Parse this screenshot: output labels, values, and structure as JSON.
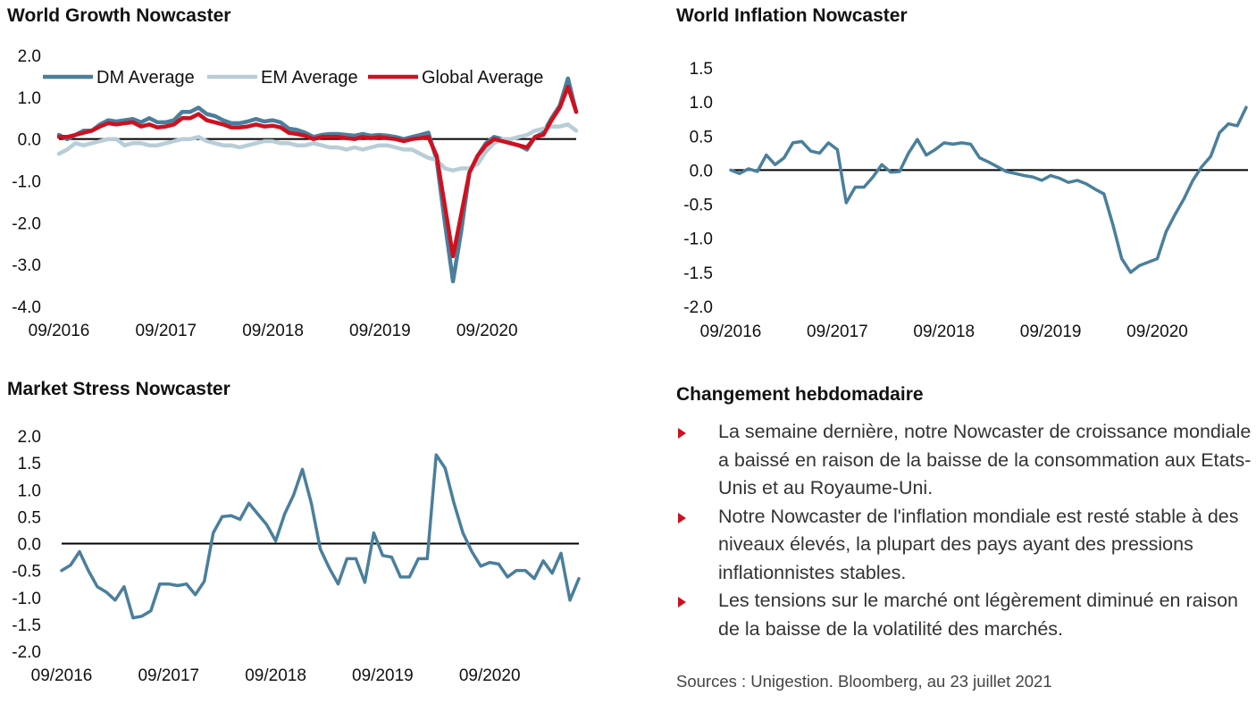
{
  "colors": {
    "dm": "#4a7f9c",
    "em": "#b8cdd7",
    "global": "#d0101f",
    "zero": "#000000",
    "bullet": "#d0101f"
  },
  "charts": {
    "growth": {
      "title": "World Growth Nowcaster"
    },
    "inflation": {
      "title": "World Inflation Nowcaster"
    },
    "stress": {
      "title": "Market Stress Nowcaster"
    }
  },
  "chart_data": [
    {
      "id": "growth",
      "type": "line",
      "title": "World Growth Nowcaster",
      "x_start": "2016-09",
      "x_end": "2021-07",
      "xticks": [
        "09/2016",
        "09/2017",
        "09/2018",
        "09/2019",
        "09/2020"
      ],
      "yticks": [
        2.0,
        1.0,
        0.0,
        -1.0,
        -2.0,
        -3.0,
        -4.0
      ],
      "ytick_labels": [
        "2.0",
        "1.0",
        "0.0",
        "-1.0",
        "-2.0",
        "-3.0",
        "-4.0"
      ],
      "ylim": [
        -4.0,
        2.0
      ],
      "legend": "top",
      "series": [
        {
          "name": "DM Average",
          "color": "#4a7f9c",
          "values": [
            0.1,
            0.0,
            0.1,
            0.2,
            0.2,
            0.35,
            0.45,
            0.42,
            0.45,
            0.48,
            0.4,
            0.5,
            0.4,
            0.4,
            0.45,
            0.65,
            0.65,
            0.75,
            0.6,
            0.55,
            0.45,
            0.38,
            0.38,
            0.42,
            0.48,
            0.42,
            0.45,
            0.4,
            0.25,
            0.22,
            0.15,
            0.05,
            0.1,
            0.12,
            0.12,
            0.1,
            0.08,
            0.12,
            0.08,
            0.1,
            0.08,
            0.05,
            0.0,
            0.05,
            0.1,
            0.15,
            -0.5,
            -2.0,
            -3.4,
            -2.2,
            -0.8,
            -0.4,
            -0.1,
            0.05,
            0.0,
            -0.1,
            -0.15,
            -0.25,
            0.05,
            0.15,
            0.5,
            0.8,
            1.45,
            0.65
          ]
        },
        {
          "name": "EM Average",
          "color": "#b8cdd7",
          "values": [
            -0.35,
            -0.25,
            -0.1,
            -0.15,
            -0.1,
            -0.05,
            0.0,
            0.0,
            -0.15,
            -0.1,
            -0.1,
            -0.15,
            -0.15,
            -0.1,
            -0.05,
            0.0,
            0.0,
            0.05,
            -0.05,
            -0.1,
            -0.15,
            -0.15,
            -0.2,
            -0.15,
            -0.1,
            -0.05,
            -0.05,
            -0.1,
            -0.1,
            -0.15,
            -0.15,
            -0.1,
            -0.15,
            -0.2,
            -0.2,
            -0.25,
            -0.2,
            -0.25,
            -0.2,
            -0.15,
            -0.15,
            -0.2,
            -0.25,
            -0.25,
            -0.35,
            -0.45,
            -0.5,
            -0.7,
            -0.75,
            -0.7,
            -0.7,
            -0.6,
            -0.3,
            -0.1,
            0.0,
            0.0,
            0.05,
            0.1,
            0.2,
            0.25,
            0.3,
            0.3,
            0.35,
            0.2
          ]
        },
        {
          "name": "Global Average",
          "color": "#d0101f",
          "values": [
            0.05,
            0.05,
            0.1,
            0.15,
            0.2,
            0.3,
            0.38,
            0.35,
            0.38,
            0.4,
            0.3,
            0.35,
            0.28,
            0.3,
            0.35,
            0.5,
            0.5,
            0.6,
            0.45,
            0.4,
            0.35,
            0.28,
            0.28,
            0.3,
            0.35,
            0.3,
            0.32,
            0.28,
            0.15,
            0.12,
            0.08,
            0.0,
            0.05,
            0.05,
            0.05,
            0.02,
            0.0,
            0.05,
            0.02,
            0.05,
            0.02,
            0.0,
            -0.05,
            0.0,
            0.02,
            0.05,
            -0.4,
            -1.6,
            -2.8,
            -1.8,
            -0.8,
            -0.4,
            -0.15,
            0.0,
            -0.05,
            -0.1,
            -0.15,
            -0.2,
            0.05,
            0.1,
            0.45,
            0.75,
            1.25,
            0.65
          ]
        }
      ]
    },
    {
      "id": "inflation",
      "type": "line",
      "title": "World Inflation Nowcaster",
      "x_start": "2016-09",
      "x_end": "2021-07",
      "xticks": [
        "09/2016",
        "09/2017",
        "09/2018",
        "09/2019",
        "09/2020"
      ],
      "yticks": [
        1.5,
        1.0,
        0.5,
        0.0,
        -0.5,
        -1.0,
        -1.5,
        -2.0
      ],
      "ytick_labels": [
        "1.5",
        "1.0",
        "0.5",
        "0.0",
        "-0.5",
        "-1.0",
        "-1.5",
        "-2.0"
      ],
      "ylim": [
        -2.0,
        1.5
      ],
      "series": [
        {
          "color": "#4a7f9c",
          "values": [
            0.0,
            -0.05,
            0.02,
            -0.02,
            0.22,
            0.08,
            0.18,
            0.4,
            0.42,
            0.28,
            0.25,
            0.4,
            0.3,
            -0.48,
            -0.25,
            -0.25,
            -0.1,
            0.08,
            -0.03,
            -0.02,
            0.25,
            0.45,
            0.22,
            0.3,
            0.4,
            0.38,
            0.4,
            0.38,
            0.18,
            0.12,
            0.05,
            -0.02,
            -0.05,
            -0.08,
            -0.1,
            -0.15,
            -0.08,
            -0.12,
            -0.18,
            -0.15,
            -0.2,
            -0.28,
            -0.35,
            -0.8,
            -1.3,
            -1.5,
            -1.4,
            -1.35,
            -1.3,
            -0.9,
            -0.65,
            -0.42,
            -0.15,
            0.05,
            0.2,
            0.55,
            0.68,
            0.65,
            0.92
          ]
        }
      ]
    },
    {
      "id": "stress",
      "type": "line",
      "title": "Market Stress Nowcaster",
      "x_start": "2016-09",
      "x_end": "2021-07",
      "xticks": [
        "09/2016",
        "09/2017",
        "09/2018",
        "09/2019",
        "09/2020"
      ],
      "yticks": [
        2.0,
        1.5,
        1.0,
        0.5,
        0.0,
        -0.5,
        -1.0,
        -1.5,
        -2.0
      ],
      "ytick_labels": [
        "2.0",
        "1.5",
        "1.0",
        "0.5",
        "0.0",
        "-0.5",
        "-1.0",
        "-1.5",
        "-2.0"
      ],
      "ylim": [
        -2.0,
        2.0
      ],
      "series": [
        {
          "color": "#4a7f9c",
          "values": [
            -0.5,
            -0.4,
            -0.15,
            -0.5,
            -0.8,
            -0.9,
            -1.05,
            -0.8,
            -1.38,
            -1.35,
            -1.25,
            -0.75,
            -0.75,
            -0.78,
            -0.75,
            -0.95,
            -0.7,
            0.2,
            0.5,
            0.52,
            0.45,
            0.75,
            0.55,
            0.35,
            0.05,
            0.55,
            0.9,
            1.38,
            0.75,
            -0.1,
            -0.45,
            -0.75,
            -0.28,
            -0.28,
            -0.72,
            0.2,
            -0.22,
            -0.25,
            -0.62,
            -0.62,
            -0.28,
            -0.28,
            1.65,
            1.4,
            0.75,
            0.2,
            -0.15,
            -0.42,
            -0.35,
            -0.38,
            -0.62,
            -0.5,
            -0.5,
            -0.65,
            -0.32,
            -0.55,
            -0.18,
            -1.05,
            -0.65
          ]
        }
      ]
    }
  ],
  "panel": {
    "title": "Changement hebdomadaire",
    "bullets": [
      "La semaine dernière, notre Nowcaster de croissance mondiale a baissé en raison de la baisse de la consommation aux Etats-Unis et au Royaume-Uni.",
      "Notre Nowcaster de l'inflation mondiale est resté stable à des niveaux élevés, la plupart des pays ayant des pressions inflationnistes stables.",
      "Les tensions sur le marché ont légèrement diminué en raison de la baisse de la volatilité des marchés."
    ],
    "sources": "Sources : Unigestion. Bloomberg, au 23 juillet 2021"
  }
}
